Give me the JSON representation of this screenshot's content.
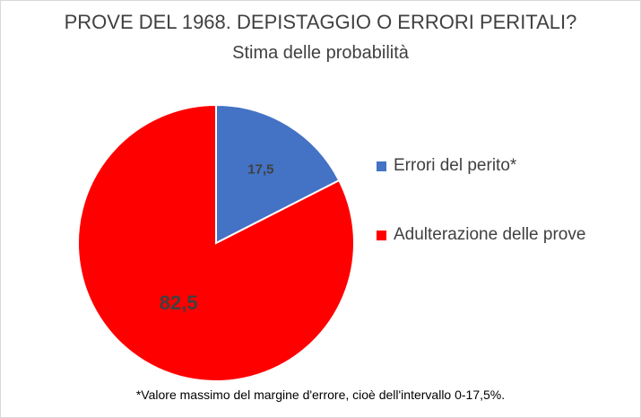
{
  "chart_data": {
    "type": "pie",
    "title": "PROVE DEL 1968. DEPISTAGGIO O ERRORI PERITALI?",
    "subtitle": "Stima delle probabilità",
    "slices": [
      {
        "label": "Errori del perito*",
        "value": 17.5,
        "value_label": "17,5",
        "color": "#4472c4"
      },
      {
        "label": "Adulterazione delle prove",
        "value": 82.5,
        "value_label": "82,5",
        "color": "#ff0000"
      }
    ],
    "legend_position": "right",
    "footnote": "*Valore massimo del margine d'errore, cioè dell'intervallo 0-17,5%."
  }
}
